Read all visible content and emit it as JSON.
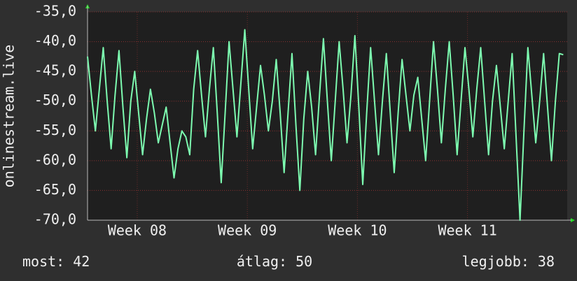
{
  "chart_data": {
    "type": "line",
    "y_label": "onlinestream.live",
    "x": [
      0,
      0.25,
      0.5,
      0.75,
      1,
      1.25,
      1.5,
      1.75,
      2,
      2.25,
      2.5,
      2.75,
      3,
      3.25,
      3.5,
      3.75,
      4,
      4.25,
      4.5,
      4.75,
      5,
      5.25,
      5.5,
      5.75,
      6,
      6.25,
      6.5,
      6.75,
      7,
      7.25,
      7.5,
      7.75,
      8,
      8.25,
      8.5,
      8.75,
      9,
      9.25,
      9.5,
      9.75,
      10,
      10.25,
      10.5,
      10.75,
      11,
      11.25,
      11.5,
      11.75,
      12,
      12.25,
      12.5,
      12.75,
      13,
      13.25,
      13.5,
      13.75,
      14,
      14.25,
      14.5,
      14.75,
      15,
      15.25,
      15.5,
      15.75,
      16,
      16.25,
      16.5,
      16.75,
      17,
      17.25,
      17.5,
      17.75,
      18,
      18.25,
      18.5,
      18.75,
      19,
      19.25,
      19.5,
      19.75,
      20,
      20.25,
      20.5,
      20.75,
      21,
      21.25,
      21.5,
      21.75,
      22,
      22.25,
      22.5,
      22.75,
      23,
      23.25,
      23.5,
      23.75,
      24,
      24.25,
      24.5,
      24.75,
      25,
      25.25,
      25.5,
      25.75,
      26,
      26.25,
      26.5,
      26.75,
      27,
      27.25,
      27.5,
      27.75,
      28,
      28.25,
      28.5,
      28.75,
      29,
      29.25,
      29.5,
      29.75,
      30,
      30.25
    ],
    "series": [
      {
        "color": "#7dfbb0",
        "values": [
          -42.5,
          -49,
          -55,
          -48,
          -41,
          -50,
          -58,
          -49,
          -41.5,
          -51,
          -59.5,
          -50,
          -45,
          -52,
          -59,
          -53,
          -48,
          -52,
          -57,
          -54,
          -51,
          -57,
          -62.9,
          -58,
          -55,
          -56,
          -59,
          -48,
          -41.5,
          -49,
          -56,
          -48,
          -41,
          -52,
          -63.7,
          -52,
          -40,
          -48,
          -56,
          -47,
          -38,
          -48,
          -58,
          -51,
          -44,
          -49,
          -55,
          -50,
          -43,
          -52,
          -62,
          -52,
          -42,
          -54,
          -65,
          -53,
          -45,
          -51,
          -59,
          -49,
          -39.5,
          -50,
          -60,
          -50,
          -40,
          -48,
          -57,
          -49,
          -39,
          -51,
          -64,
          -52,
          -41,
          -50,
          -59,
          -50,
          -42,
          -52,
          -62,
          -52,
          -43,
          -49,
          -55,
          -49,
          -46,
          -53,
          -60,
          -50,
          -40,
          -48,
          -57,
          -48,
          -40,
          -49,
          -59,
          -50,
          -41,
          -48,
          -56,
          -48,
          -41,
          -50,
          -59,
          -50,
          -44,
          -51,
          -58,
          -50,
          -42,
          -56,
          -70,
          -55,
          -41,
          -49,
          -57,
          -50,
          -42,
          -51,
          -60,
          -50,
          -42,
          -42.2
        ]
      }
    ],
    "xlim": [
      0,
      30.5
    ],
    "xticks": [
      {
        "value": 3.16,
        "label": "Week 08"
      },
      {
        "value": 10.16,
        "label": "Week 09"
      },
      {
        "value": 17.16,
        "label": "Week 10"
      },
      {
        "value": 24.16,
        "label": "Week 11"
      }
    ],
    "ylim": [
      -70,
      -35
    ],
    "yticks": [
      {
        "value": -70,
        "label": "-70,0"
      },
      {
        "value": -65,
        "label": "-65,0"
      },
      {
        "value": -60,
        "label": "-60,0"
      },
      {
        "value": -55,
        "label": "-55,0"
      },
      {
        "value": -50,
        "label": "-50,0"
      },
      {
        "value": -45,
        "label": "-45,0"
      },
      {
        "value": -40,
        "label": "-40,0"
      },
      {
        "value": -35,
        "label": "-35,0"
      }
    ],
    "grid": true,
    "stats": [
      {
        "label": "most:",
        "value": 42
      },
      {
        "label": "átlag:",
        "value": 50
      },
      {
        "label": "legjobb:",
        "value": 38
      }
    ]
  }
}
